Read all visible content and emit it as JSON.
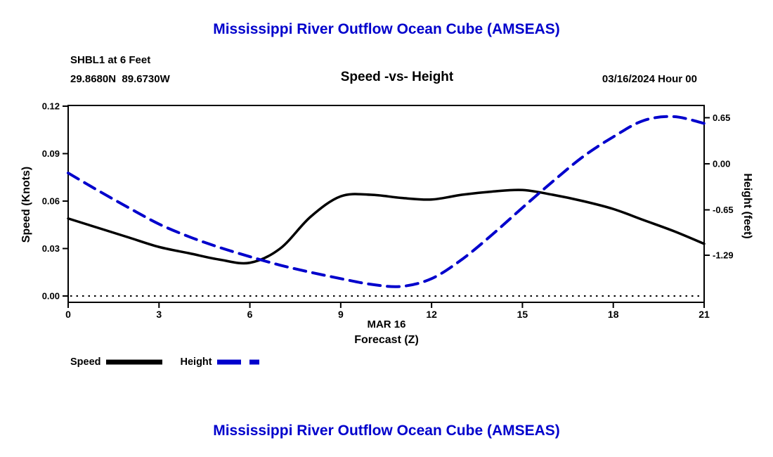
{
  "theme": {
    "background": "#ffffff",
    "accent": "#0000cc",
    "ink": "#000000"
  },
  "chart_data": {
    "type": "line",
    "title": "Mississippi River Outflow Ocean Cube (AMSEAS)",
    "station": "SHBL1 at 6 Feet",
    "coordinates": "29.8680N  89.6730W",
    "subtitle": "Speed -vs- Height",
    "forecast_start": "03/16/2024 Hour 00",
    "xlabel": [
      "MAR 16",
      "Forecast (Z)"
    ],
    "x_range": [
      0,
      21
    ],
    "x_ticks": {
      "values": [
        0,
        3,
        6,
        9,
        12,
        15,
        18,
        21
      ],
      "labels": [
        "0",
        "3",
        "6",
        "9",
        "12",
        "15",
        "18",
        "21"
      ]
    },
    "x": [
      0,
      1,
      2,
      3,
      4,
      5,
      6,
      7,
      8,
      9,
      10,
      11,
      12,
      13,
      14,
      15,
      16,
      17,
      18,
      19,
      20,
      21
    ],
    "left_axis": {
      "label": "Speed (Knots)",
      "range": [
        0,
        0.12
      ],
      "ticks": {
        "values": [
          0,
          0.03,
          0.06,
          0.09,
          0.12
        ],
        "labels": [
          "0.00",
          "0.03",
          "0.06",
          "0.09",
          "0.12"
        ]
      },
      "zero_gridline": true
    },
    "right_axis": {
      "label": "Height (feet)",
      "range": [
        -1.865,
        0.813
      ],
      "ticks": {
        "values": [
          0.65,
          0,
          -0.65,
          -1.29
        ],
        "labels": [
          "0.65",
          "0.00",
          "-0.65",
          "-1.29"
        ]
      }
    },
    "series": [
      {
        "name": "Speed",
        "axis": "left",
        "color": "#000000",
        "line_style": "solid",
        "width": 3.5,
        "values": [
          0.049,
          0.043,
          0.037,
          0.031,
          0.027,
          0.023,
          0.021,
          0.03,
          0.05,
          0.063,
          0.064,
          0.062,
          0.061,
          0.064,
          0.066,
          0.067,
          0.064,
          0.06,
          0.055,
          0.048,
          0.041,
          0.033
        ]
      },
      {
        "name": "Height",
        "axis": "right",
        "color": "#0000cc",
        "line_style": "dashed",
        "width": 4,
        "values": [
          -0.13,
          -0.38,
          -0.62,
          -0.85,
          -1.03,
          -1.18,
          -1.31,
          -1.43,
          -1.53,
          -1.62,
          -1.7,
          -1.73,
          -1.62,
          -1.35,
          -1.0,
          -0.62,
          -0.25,
          0.1,
          0.38,
          0.61,
          0.665,
          0.57
        ]
      }
    ],
    "legend": [
      {
        "label": "Speed",
        "color": "#000000",
        "style": "solid"
      },
      {
        "label": "Height",
        "color": "#0000cc",
        "style": "dashed"
      }
    ],
    "grid": "zero-line-dotted",
    "legend_position": "bottom-left"
  },
  "footer": {
    "title": "Mississippi River Outflow Ocean Cube (AMSEAS)"
  }
}
